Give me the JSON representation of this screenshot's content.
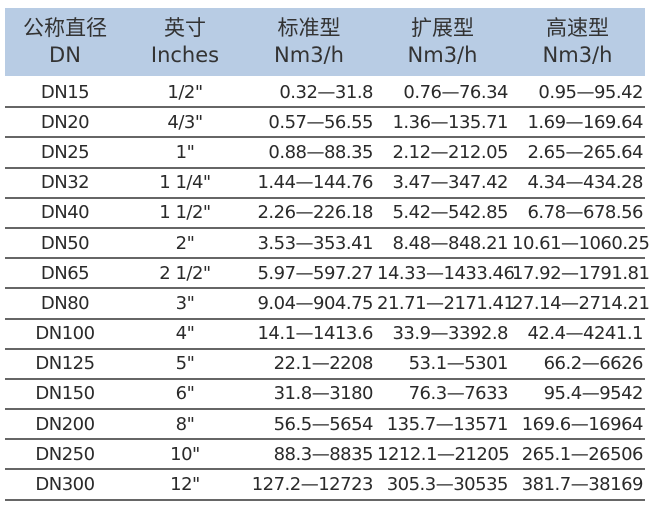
{
  "header": [
    {
      "zh": "公称直径",
      "en": "DN"
    },
    {
      "zh": "英寸",
      "en": "Inches"
    },
    {
      "zh": "标准型",
      "en": "Nm3/h"
    },
    {
      "zh": "扩展型",
      "en": "Nm3/h"
    },
    {
      "zh": "高速型",
      "en": "Nm3/h"
    }
  ],
  "rows": [
    [
      "DN15",
      "1/2\"",
      "0.32—31.8",
      "0.76—76.34",
      "0.95—95.42"
    ],
    [
      "DN20",
      "4/3\"",
      "0.57—56.55",
      "1.36—135.71",
      "1.69—169.64"
    ],
    [
      "DN25",
      "1\"",
      "0.88—88.35",
      "2.12—212.05",
      "2.65—265.64"
    ],
    [
      "DN32",
      "1 1/4\"",
      "1.44—144.76",
      "3.47—347.42",
      "4.34—434.28"
    ],
    [
      "DN40",
      "1 1/2\"",
      "2.26—226.18",
      "5.42—542.85",
      "6.78—678.56"
    ],
    [
      "DN50",
      "2\"",
      "3.53—353.41",
      "8.48—848.21",
      "10.61—1060.25"
    ],
    [
      "DN65",
      "2 1/2\"",
      "5.97—597.27",
      "14.33—1433.46",
      "17.92—1791.81"
    ],
    [
      "DN80",
      "3\"",
      "9.04—904.75",
      "21.71—2171.41",
      "27.14—2714.21"
    ],
    [
      "DN100",
      "4\"",
      "14.1—1413.6",
      "33.9—3392.8",
      "42.4—4241.1"
    ],
    [
      "DN125",
      "5\"",
      "22.1—2208",
      "53.1—5301",
      "66.2—6626"
    ],
    [
      "DN150",
      "6\"",
      "31.8—3180",
      "76.3—7633",
      "95.4—9542"
    ],
    [
      "DN200",
      "8\"",
      "56.5—5654",
      "135.7—13571",
      "169.6—16964"
    ],
    [
      "DN250",
      "10\"",
      "88.3—8835",
      "1212.1—21205",
      "265.1—26506"
    ],
    [
      "DN300",
      "12\"",
      "127.2—12723",
      "305.3—30535",
      "381.7—38169"
    ]
  ],
  "colors": {
    "header_bg": "#b8cce4",
    "rule": "#666666"
  }
}
